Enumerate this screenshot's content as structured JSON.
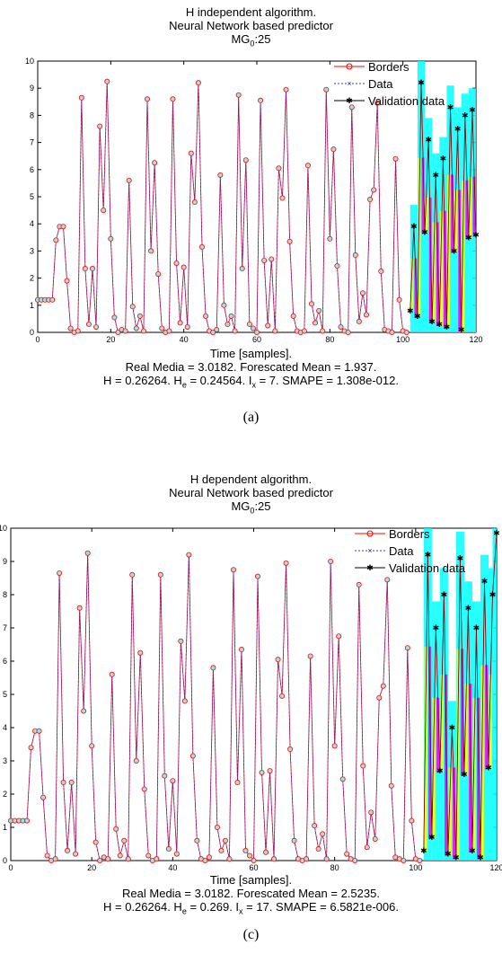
{
  "charts": [
    {
      "title_lines": [
        "H independent algorithm.",
        "Neural Network based predictor"
      ],
      "subtitle_prefix": "MG",
      "subtitle_sub": "0",
      "subtitle_suffix": ":25",
      "xlabel": "Time [samples].",
      "stats_line1": "Real Media = 3.0182. Forescated Mean = 1.937.",
      "stats_line2_parts": [
        "H = 0.26264. H",
        "e",
        " = 0.24564. I",
        "x",
        " = 7. SMAPE = 1.308e-012."
      ],
      "panel_label": "(a)"
    },
    {
      "title_lines": [
        "H dependent algorithm.",
        "Neural Network based predictor"
      ],
      "subtitle_prefix": "MG",
      "subtitle_sub": "0",
      "subtitle_suffix": ":25",
      "xlabel": "Time [samples].",
      "stats_line1": "Real Media = 3.0182. Forescated Mean = 2.5235.",
      "stats_line2_parts": [
        "H = 0.26264. H",
        "e",
        " = 0.269. I",
        "x",
        " = 17. SMAPE = 6.5821e-006."
      ],
      "panel_label": "(c)"
    }
  ],
  "chart_data": [
    {
      "type": "line",
      "xlim": [
        0,
        120
      ],
      "ylim": [
        0,
        10
      ],
      "xticks": [
        0,
        20,
        40,
        60,
        80,
        100,
        120
      ],
      "yticks": [
        0,
        1,
        2,
        3,
        4,
        5,
        6,
        7,
        8,
        9,
        10
      ],
      "legend": [
        "Borders",
        "Data",
        "Validation data"
      ],
      "legend_position": "top-right",
      "colors": {
        "borders": "#ff0000",
        "data": "#3333cc",
        "validation": "#000000",
        "band_cyan": "#00ffff",
        "band_magenta": "#ff00ff",
        "band_yellow": "#ffff00"
      },
      "series": [
        {
          "name": "Data",
          "x": [
            0,
            1,
            2,
            3,
            4,
            5,
            6,
            7,
            8,
            9,
            10,
            11,
            12,
            13,
            14,
            15,
            16,
            17,
            18,
            19,
            20,
            21,
            22,
            23,
            24,
            25,
            26,
            27,
            28,
            29,
            30,
            31,
            32,
            33,
            34,
            35,
            36,
            37,
            38,
            39,
            40,
            41,
            42,
            43,
            44,
            45,
            46,
            47,
            48,
            49,
            50,
            51,
            52,
            53,
            54,
            55,
            56,
            57,
            58,
            59,
            60,
            61,
            62,
            63,
            64,
            65,
            66,
            67,
            68,
            69,
            70,
            71,
            72,
            73,
            74,
            75,
            76,
            77,
            78,
            79,
            80,
            81,
            82,
            83,
            84,
            85,
            86,
            87,
            88,
            89,
            90,
            91,
            92,
            93,
            94,
            95,
            96,
            97,
            98,
            99,
            100,
            101
          ],
          "y": [
            1.2,
            1.2,
            1.2,
            1.2,
            1.2,
            3.4,
            3.9,
            3.9,
            1.9,
            0.15,
            0.0,
            0.05,
            8.65,
            2.35,
            0.3,
            2.35,
            0.2,
            7.6,
            4.5,
            9.25,
            3.45,
            0.55,
            0.0,
            0.1,
            0.05,
            5.6,
            0.95,
            0.15,
            0.6,
            0.05,
            8.6,
            3.0,
            6.25,
            2.15,
            0.15,
            0.0,
            0.05,
            8.6,
            2.55,
            0.35,
            2.4,
            0.2,
            6.6,
            4.8,
            9.2,
            3.15,
            0.6,
            0.05,
            0.0,
            0.1,
            5.8,
            1.0,
            0.3,
            0.6,
            0.05,
            8.75,
            2.35,
            6.35,
            0.3,
            0.15,
            0.0,
            8.55,
            2.65,
            0.25,
            2.7,
            0.05,
            6.05,
            4.95,
            8.95,
            3.35,
            0.6,
            0.05,
            0.0,
            0.05,
            6.15,
            1.05,
            0.35,
            0.8,
            0.05,
            8.95,
            3.45,
            6.75,
            2.45,
            0.2,
            0.05,
            0.0,
            8.3,
            2.85,
            0.4,
            1.45,
            0.65,
            4.9,
            5.25,
            8.45,
            2.25,
            0.1,
            0.05,
            0.0,
            6.4,
            1.2,
            0.05,
            0.0
          ]
        },
        {
          "name": "Validation data",
          "x": [
            102,
            103,
            104,
            105,
            106,
            107,
            108,
            109,
            110,
            111,
            112,
            113,
            114,
            115,
            116,
            117,
            118,
            119,
            120
          ],
          "y": [
            0.8,
            3.9,
            0.6,
            9.2,
            3.7,
            7.1,
            0.4,
            5.8,
            0.3,
            6.4,
            0.2,
            8.3,
            3.0,
            7.5,
            0.1,
            8.0,
            3.5,
            8.2,
            3.6
          ]
        }
      ]
    },
    {
      "type": "line",
      "xlim": [
        0,
        120
      ],
      "ylim": [
        0,
        10
      ],
      "xticks": [
        0,
        20,
        40,
        60,
        80,
        100,
        120
      ],
      "yticks": [
        0,
        1,
        2,
        3,
        4,
        5,
        6,
        7,
        8,
        9,
        10
      ],
      "legend": [
        "Borders",
        "Data",
        "Validation data"
      ],
      "legend_position": "top-right",
      "colors": {
        "borders": "#ff0000",
        "data": "#3333cc",
        "validation": "#000000",
        "band_cyan": "#00ffff",
        "band_magenta": "#ff00ff",
        "band_yellow": "#ffff00"
      },
      "series": [
        {
          "name": "Data",
          "x": [
            0,
            1,
            2,
            3,
            4,
            5,
            6,
            7,
            8,
            9,
            10,
            11,
            12,
            13,
            14,
            15,
            16,
            17,
            18,
            19,
            20,
            21,
            22,
            23,
            24,
            25,
            26,
            27,
            28,
            29,
            30,
            31,
            32,
            33,
            34,
            35,
            36,
            37,
            38,
            39,
            40,
            41,
            42,
            43,
            44,
            45,
            46,
            47,
            48,
            49,
            50,
            51,
            52,
            53,
            54,
            55,
            56,
            57,
            58,
            59,
            60,
            61,
            62,
            63,
            64,
            65,
            66,
            67,
            68,
            69,
            70,
            71,
            72,
            73,
            74,
            75,
            76,
            77,
            78,
            79,
            80,
            81,
            82,
            83,
            84,
            85,
            86,
            87,
            88,
            89,
            90,
            91,
            92,
            93,
            94,
            95,
            96,
            97,
            98,
            99,
            100,
            101
          ],
          "y": [
            1.2,
            1.2,
            1.2,
            1.2,
            1.2,
            3.4,
            3.9,
            3.9,
            1.9,
            0.15,
            0.0,
            0.05,
            8.65,
            2.35,
            0.3,
            2.35,
            0.2,
            7.6,
            4.5,
            9.25,
            3.45,
            0.55,
            0.0,
            0.1,
            0.05,
            5.6,
            0.95,
            0.15,
            0.6,
            0.05,
            8.6,
            3.0,
            6.25,
            2.15,
            0.15,
            0.0,
            0.05,
            8.6,
            2.55,
            0.35,
            2.4,
            0.2,
            6.6,
            4.8,
            9.2,
            3.15,
            0.6,
            0.05,
            0.0,
            0.1,
            5.8,
            1.0,
            0.3,
            0.6,
            0.05,
            8.75,
            2.35,
            6.35,
            0.3,
            0.15,
            0.0,
            8.55,
            2.65,
            0.25,
            2.7,
            0.05,
            6.05,
            4.95,
            8.95,
            3.35,
            0.6,
            0.05,
            0.0,
            0.05,
            6.15,
            1.05,
            0.35,
            0.8,
            0.05,
            9.0,
            3.45,
            6.75,
            2.45,
            0.2,
            0.05,
            0.0,
            8.3,
            2.85,
            0.4,
            1.45,
            0.65,
            4.9,
            5.25,
            8.45,
            2.25,
            0.1,
            0.05,
            0.0,
            6.4,
            1.2,
            0.05,
            0.0
          ]
        },
        {
          "name": "Validation data",
          "x": [
            102,
            103,
            104,
            105,
            106,
            107,
            108,
            109,
            110,
            111,
            112,
            113,
            114,
            115,
            116,
            117,
            118,
            119,
            120
          ],
          "y": [
            0.3,
            9.2,
            0.7,
            7.0,
            2.7,
            8.0,
            0.2,
            4.0,
            0.1,
            9.1,
            2.6,
            7.6,
            0.3,
            7.0,
            0.1,
            8.4,
            2.8,
            8.0,
            9.85
          ]
        }
      ]
    }
  ]
}
